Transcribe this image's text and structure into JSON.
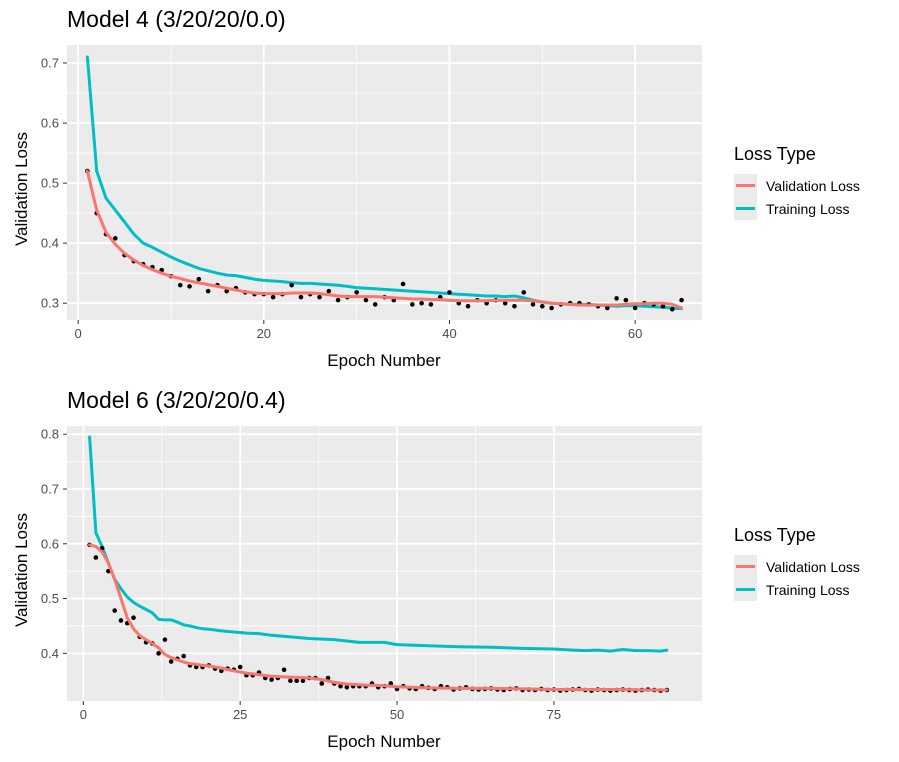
{
  "colors": {
    "validation": "#f8766d",
    "training": "#00bfc4",
    "points": "#000000",
    "panel": "#ebebeb",
    "grid": "#ffffff"
  },
  "chart_data": [
    {
      "type": "line",
      "title": "Model 4 (3/20/20/0.0)",
      "xlabel": "Epoch Number",
      "ylabel": "Validation Loss",
      "xlim": [
        -1.2,
        67.2
      ],
      "ylim": [
        0.272,
        0.73
      ],
      "x_ticks": [
        0,
        20,
        40,
        60
      ],
      "x_tick_labels": [
        "0",
        "20",
        "40",
        "60"
      ],
      "y_ticks": [
        0.3,
        0.4,
        0.5,
        0.6,
        0.7
      ],
      "y_tick_labels": [
        "0.3",
        "0.4",
        "0.5",
        "0.6",
        "0.7"
      ],
      "grid": true,
      "legend": {
        "title": "Loss Type",
        "position": "right",
        "entries": [
          {
            "label": "Validation Loss",
            "color": "#f8766d"
          },
          {
            "label": "Training Loss",
            "color": "#00bfc4"
          }
        ]
      },
      "series": [
        {
          "name": "Training Loss",
          "color": "#00bfc4",
          "kind": "line",
          "x": [
            1,
            2,
            3,
            4,
            5,
            6,
            7,
            8,
            9,
            10,
            11,
            12,
            13,
            14,
            15,
            16,
            17,
            18,
            19,
            20,
            21,
            22,
            23,
            24,
            25,
            26,
            27,
            28,
            29,
            30,
            31,
            32,
            33,
            34,
            35,
            36,
            37,
            38,
            39,
            40,
            41,
            42,
            43,
            44,
            45,
            46,
            47,
            48,
            49,
            50,
            51,
            52,
            53,
            54,
            55,
            56,
            57,
            58,
            59,
            60,
            61,
            62,
            63,
            64,
            65
          ],
          "y": [
            0.71,
            0.52,
            0.475,
            0.455,
            0.435,
            0.415,
            0.4,
            0.393,
            0.385,
            0.377,
            0.37,
            0.364,
            0.358,
            0.354,
            0.35,
            0.347,
            0.346,
            0.343,
            0.34,
            0.338,
            0.337,
            0.336,
            0.334,
            0.333,
            0.333,
            0.332,
            0.331,
            0.33,
            0.328,
            0.326,
            0.325,
            0.324,
            0.323,
            0.322,
            0.321,
            0.32,
            0.319,
            0.318,
            0.317,
            0.316,
            0.315,
            0.314,
            0.313,
            0.312,
            0.312,
            0.311,
            0.312,
            0.309,
            0.305,
            0.302,
            0.3,
            0.299,
            0.298,
            0.298,
            0.298,
            0.297,
            0.296,
            0.295,
            0.296,
            0.296,
            0.295,
            0.294,
            0.293,
            0.292,
            0.291
          ]
        },
        {
          "name": "Validation Loss",
          "color": "#f8766d",
          "kind": "smooth",
          "x": [
            1,
            2,
            3,
            4,
            5,
            6,
            7,
            8,
            9,
            10,
            11,
            12,
            13,
            14,
            15,
            16,
            17,
            18,
            19,
            20,
            21,
            22,
            23,
            24,
            25,
            26,
            27,
            28,
            29,
            30,
            31,
            32,
            33,
            34,
            35,
            36,
            37,
            38,
            39,
            40,
            41,
            42,
            43,
            44,
            45,
            46,
            47,
            48,
            49,
            50,
            51,
            52,
            53,
            54,
            55,
            56,
            57,
            58,
            59,
            60,
            61,
            62,
            63,
            64,
            65
          ],
          "y": [
            0.52,
            0.455,
            0.418,
            0.398,
            0.383,
            0.372,
            0.363,
            0.356,
            0.35,
            0.345,
            0.341,
            0.337,
            0.334,
            0.331,
            0.328,
            0.325,
            0.322,
            0.319,
            0.317,
            0.316,
            0.316,
            0.316,
            0.317,
            0.317,
            0.317,
            0.316,
            0.314,
            0.312,
            0.311,
            0.311,
            0.311,
            0.311,
            0.31,
            0.309,
            0.308,
            0.307,
            0.307,
            0.306,
            0.306,
            0.305,
            0.304,
            0.304,
            0.304,
            0.304,
            0.305,
            0.305,
            0.305,
            0.305,
            0.304,
            0.302,
            0.3,
            0.299,
            0.298,
            0.297,
            0.297,
            0.297,
            0.297,
            0.297,
            0.298,
            0.299,
            0.299,
            0.3,
            0.3,
            0.298,
            0.292
          ]
        },
        {
          "name": "",
          "color": "#000000",
          "kind": "points",
          "x": [
            1,
            2,
            3,
            4,
            5,
            6,
            7,
            8,
            9,
            10,
            11,
            12,
            13,
            14,
            15,
            16,
            17,
            18,
            19,
            20,
            21,
            22,
            23,
            24,
            25,
            26,
            27,
            28,
            29,
            30,
            31,
            32,
            33,
            34,
            35,
            36,
            37,
            38,
            39,
            40,
            41,
            42,
            43,
            44,
            45,
            46,
            47,
            48,
            49,
            50,
            51,
            52,
            53,
            54,
            55,
            56,
            57,
            58,
            59,
            60,
            61,
            62,
            63,
            64,
            65
          ],
          "y": [
            0.52,
            0.45,
            0.415,
            0.408,
            0.38,
            0.37,
            0.365,
            0.36,
            0.355,
            0.345,
            0.33,
            0.328,
            0.34,
            0.32,
            0.33,
            0.32,
            0.325,
            0.318,
            0.315,
            0.315,
            0.31,
            0.315,
            0.33,
            0.31,
            0.315,
            0.31,
            0.32,
            0.305,
            0.31,
            0.318,
            0.305,
            0.298,
            0.31,
            0.305,
            0.332,
            0.298,
            0.3,
            0.298,
            0.31,
            0.318,
            0.3,
            0.295,
            0.305,
            0.3,
            0.305,
            0.3,
            0.295,
            0.318,
            0.298,
            0.295,
            0.292,
            0.298,
            0.3,
            0.3,
            0.298,
            0.295,
            0.292,
            0.308,
            0.305,
            0.292,
            0.3,
            0.298,
            0.295,
            0.29,
            0.305
          ]
        }
      ]
    },
    {
      "type": "line",
      "title": "Model 6 (3/20/20/0.4)",
      "xlabel": "Epoch Number",
      "ylabel": "Validation Loss",
      "xlim": [
        -2.6,
        98.6
      ],
      "ylim": [
        0.313,
        0.815
      ],
      "x_ticks": [
        0,
        25,
        50,
        75
      ],
      "x_tick_labels": [
        "0",
        "25",
        "50",
        "75"
      ],
      "y_ticks": [
        0.4,
        0.5,
        0.6,
        0.7,
        0.8
      ],
      "y_tick_labels": [
        "0.4",
        "0.5",
        "0.6",
        "0.7",
        "0.8"
      ],
      "grid": true,
      "legend": {
        "title": "Loss Type",
        "position": "right",
        "entries": [
          {
            "label": "Validation Loss",
            "color": "#f8766d"
          },
          {
            "label": "Training Loss",
            "color": "#00bfc4"
          }
        ]
      },
      "series": [
        {
          "name": "Training Loss",
          "color": "#00bfc4",
          "kind": "line",
          "x": [
            1,
            2,
            3,
            4,
            5,
            6,
            7,
            8,
            9,
            10,
            11,
            12,
            13,
            14,
            15,
            16,
            17,
            18,
            19,
            20,
            22,
            24,
            26,
            28,
            30,
            33,
            36,
            40,
            44,
            48,
            50,
            55,
            60,
            65,
            70,
            75,
            78,
            80,
            82,
            84,
            86,
            88,
            90,
            92,
            93
          ],
          "y": [
            0.795,
            0.62,
            0.595,
            0.565,
            0.535,
            0.518,
            0.503,
            0.493,
            0.486,
            0.48,
            0.474,
            0.462,
            0.461,
            0.461,
            0.457,
            0.452,
            0.45,
            0.447,
            0.445,
            0.444,
            0.441,
            0.439,
            0.437,
            0.436,
            0.433,
            0.43,
            0.427,
            0.425,
            0.42,
            0.42,
            0.416,
            0.414,
            0.412,
            0.411,
            0.409,
            0.408,
            0.406,
            0.405,
            0.406,
            0.404,
            0.407,
            0.405,
            0.405,
            0.404,
            0.406
          ]
        },
        {
          "name": "Validation Loss",
          "color": "#f8766d",
          "kind": "smooth",
          "x": [
            1,
            2,
            3,
            4,
            5,
            6,
            7,
            8,
            9,
            10,
            11,
            12,
            13,
            14,
            15,
            16,
            17,
            18,
            19,
            20,
            22,
            24,
            26,
            28,
            30,
            32,
            34,
            36,
            38,
            40,
            42,
            45,
            48,
            50,
            55,
            60,
            65,
            70,
            75,
            80,
            85,
            90,
            93
          ],
          "y": [
            0.598,
            0.595,
            0.585,
            0.565,
            0.535,
            0.5,
            0.465,
            0.445,
            0.432,
            0.425,
            0.418,
            0.41,
            0.398,
            0.392,
            0.388,
            0.384,
            0.381,
            0.38,
            0.378,
            0.377,
            0.373,
            0.368,
            0.364,
            0.361,
            0.358,
            0.357,
            0.356,
            0.355,
            0.352,
            0.347,
            0.344,
            0.342,
            0.341,
            0.339,
            0.337,
            0.336,
            0.336,
            0.335,
            0.334,
            0.334,
            0.334,
            0.333,
            0.333
          ]
        },
        {
          "name": "",
          "color": "#000000",
          "kind": "points",
          "x": [
            1,
            2,
            3,
            4,
            5,
            6,
            7,
            8,
            9,
            10,
            11,
            12,
            13,
            14,
            15,
            16,
            17,
            18,
            19,
            20,
            21,
            22,
            23,
            24,
            25,
            26,
            27,
            28,
            29,
            30,
            31,
            32,
            33,
            34,
            35,
            36,
            37,
            38,
            39,
            40,
            41,
            42,
            43,
            44,
            45,
            46,
            47,
            48,
            49,
            50,
            51,
            52,
            53,
            54,
            55,
            56,
            57,
            58,
            59,
            60,
            61,
            62,
            63,
            64,
            65,
            66,
            67,
            68,
            69,
            70,
            71,
            72,
            73,
            74,
            75,
            76,
            77,
            78,
            79,
            80,
            81,
            82,
            83,
            84,
            85,
            86,
            87,
            88,
            89,
            90,
            91,
            92,
            93
          ],
          "y": [
            0.598,
            0.575,
            0.592,
            0.55,
            0.478,
            0.46,
            0.455,
            0.465,
            0.43,
            0.42,
            0.418,
            0.4,
            0.425,
            0.385,
            0.39,
            0.395,
            0.378,
            0.375,
            0.375,
            0.378,
            0.372,
            0.368,
            0.372,
            0.37,
            0.375,
            0.36,
            0.36,
            0.365,
            0.355,
            0.352,
            0.355,
            0.37,
            0.35,
            0.35,
            0.35,
            0.355,
            0.355,
            0.345,
            0.355,
            0.345,
            0.34,
            0.338,
            0.34,
            0.34,
            0.34,
            0.345,
            0.338,
            0.34,
            0.345,
            0.335,
            0.34,
            0.336,
            0.335,
            0.34,
            0.337,
            0.335,
            0.34,
            0.338,
            0.334,
            0.336,
            0.338,
            0.335,
            0.334,
            0.335,
            0.336,
            0.334,
            0.333,
            0.335,
            0.336,
            0.333,
            0.334,
            0.333,
            0.335,
            0.333,
            0.334,
            0.332,
            0.333,
            0.334,
            0.335,
            0.333,
            0.332,
            0.334,
            0.333,
            0.332,
            0.333,
            0.334,
            0.333,
            0.332,
            0.333,
            0.334,
            0.333,
            0.332,
            0.333
          ]
        }
      ]
    }
  ]
}
